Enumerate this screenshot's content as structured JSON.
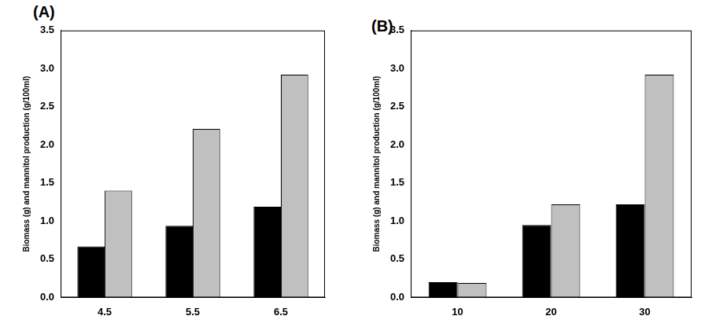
{
  "chart_data": [
    {
      "type": "bar",
      "title": "(A)",
      "y_label": "Biomass (g) and mannitol production (g/100ml)",
      "categories": [
        "4.5",
        "5.5",
        "6.5"
      ],
      "series": [
        {
          "color": "#000000",
          "values": [
            0.67,
            0.94,
            1.19
          ]
        },
        {
          "color": "#c0c0c0",
          "values": [
            1.4,
            2.21,
            2.92
          ]
        }
      ],
      "ylim": [
        0,
        3.5
      ],
      "yticks": [
        {
          "value": 0,
          "label": "0.0"
        },
        0.5,
        {
          "value": 1,
          "label": "1.0"
        },
        1.5,
        {
          "value": 2,
          "label": "2.0"
        },
        2.5,
        {
          "value": 3,
          "label": "3.0"
        },
        3.5
      ],
      "grid": false
    },
    {
      "type": "bar",
      "title": "(B)",
      "y_label": "Biomass (g) and mannitol production (g/100ml)",
      "categories": [
        "10",
        "20",
        "30"
      ],
      "series": [
        {
          "color": "#000000",
          "values": [
            0.2,
            0.95,
            1.22
          ]
        },
        {
          "color": "#c0c0c0",
          "values": [
            0.19,
            1.22,
            2.92
          ]
        }
      ],
      "ylim": [
        0,
        3.5
      ],
      "yticks": [
        {
          "value": 0,
          "label": "0.0"
        },
        0.5,
        {
          "value": 1,
          "label": "1.0"
        },
        1.5,
        {
          "value": 2,
          "label": "2.0"
        },
        2.5,
        {
          "value": 3,
          "label": "3.0"
        },
        3.5
      ],
      "grid": false
    }
  ]
}
